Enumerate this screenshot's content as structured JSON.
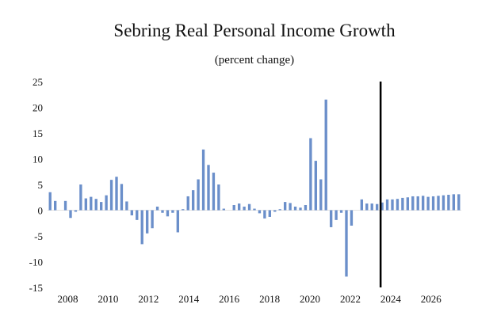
{
  "chart_data": {
    "type": "bar",
    "title": "Sebring Real Personal Income Growth",
    "subtitle": "(percent change)",
    "xlabel": "",
    "ylabel": "",
    "ylim": [
      -15,
      25
    ],
    "yticks": [
      25,
      20,
      15,
      10,
      5,
      0,
      -5,
      -10,
      -15
    ],
    "xticks": [
      "2008",
      "2010",
      "2012",
      "2014",
      "2016",
      "2018",
      "2020",
      "2022",
      "2024",
      "2026"
    ],
    "x_start": 2007.0,
    "x_end": 2027.5,
    "grid": false,
    "legend": "none",
    "bar_color": "#6b8fca",
    "forecast_line_color": "#000000",
    "forecast_start": 2023.5,
    "series": [
      {
        "values": [
          3.5,
          1.8,
          0,
          1.8,
          -1.5,
          -0.3,
          5.0,
          2.3,
          2.6,
          2.2,
          1.6,
          2.9,
          5.9,
          6.5,
          5.1,
          1.7,
          -1.0,
          -1.9,
          -6.6,
          -4.5,
          -3.5,
          0.7,
          -0.5,
          -1.2,
          -0.5,
          -4.3,
          0.2,
          2.7,
          3.9,
          6.0,
          11.8,
          8.8,
          7.3,
          5.0,
          0.3,
          0,
          1.0,
          1.3,
          0.7,
          1.2,
          0.3,
          -0.6,
          -1.6,
          -1.3,
          -0.3,
          0.2,
          1.6,
          1.4,
          0.7,
          0.5,
          1.0,
          14.0,
          9.6,
          6.0,
          21.5,
          -3.3,
          -1.9,
          -0.5,
          -12.9,
          -3.0,
          0,
          2.1,
          1.3,
          1.3,
          1.2,
          1.5,
          2.1,
          2.1,
          2.2,
          2.4,
          2.5,
          2.7,
          2.7,
          2.8,
          2.6,
          2.7,
          2.8,
          2.9,
          3.0,
          3.1,
          3.1
        ]
      }
    ]
  }
}
